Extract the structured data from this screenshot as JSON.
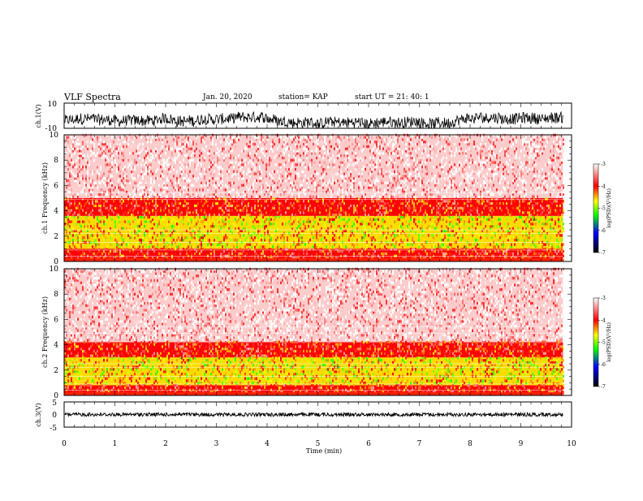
{
  "header": {
    "title": "VLF Spectra",
    "date": "Jan. 20, 2020",
    "station": "station= KAP",
    "start_ut": "start  UT =   21: 40: 1"
  },
  "colorbar": {
    "ticks": [
      "-3",
      "-4",
      "-5",
      "-6",
      "-7"
    ],
    "label": "log(PSD)(V²/Hz)",
    "colors": [
      "#ffffff",
      "#ff0000",
      "#ffff00",
      "#00ff00",
      "#0000ff",
      "#000000"
    ]
  },
  "chart_data": [
    {
      "type": "line",
      "name": "ch1-waveform",
      "ylabel": "ch.1(V)",
      "ylim": [
        -10,
        10
      ],
      "yticks": [
        "10",
        "-10"
      ],
      "xlim": [
        0,
        10
      ],
      "x_data_end": 9.83,
      "description_level": "noisy waveform fluctuating mostly between -10 and 0 V"
    },
    {
      "type": "heatmap",
      "name": "ch1-spectrogram",
      "ylabel": "ch.1\nFrequency (kHz)",
      "ylim": [
        0,
        10
      ],
      "yticks": [
        "0",
        "2",
        "4",
        "6",
        "8",
        "10"
      ],
      "xlim": [
        0,
        10
      ],
      "x_data_end": 9.83,
      "bands": [
        {
          "freq_kHz": [
            0,
            1
          ],
          "log_psd": -4
        },
        {
          "freq_kHz": [
            1,
            3.6
          ],
          "log_psd": -4.6
        },
        {
          "freq_kHz": [
            3.6,
            5
          ],
          "log_psd": -4
        },
        {
          "freq_kHz": [
            5,
            10
          ],
          "log_psd": -3.2
        }
      ]
    },
    {
      "type": "heatmap",
      "name": "ch2-spectrogram",
      "ylabel": "ch.2\nFrequency (kHz)",
      "ylim": [
        0,
        10
      ],
      "yticks": [
        "0",
        "2",
        "4",
        "6",
        "8",
        "10"
      ],
      "xlim": [
        0,
        10
      ],
      "x_data_end": 9.83,
      "bands": [
        {
          "freq_kHz": [
            0,
            0.8
          ],
          "log_psd": -4
        },
        {
          "freq_kHz": [
            0.8,
            3
          ],
          "log_psd": -4.6
        },
        {
          "freq_kHz": [
            3,
            4.2
          ],
          "log_psd": -4
        },
        {
          "freq_kHz": [
            4.2,
            10
          ],
          "log_psd": -3.2
        }
      ]
    },
    {
      "type": "line",
      "name": "ch3-waveform",
      "ylabel": "ch.3(V)",
      "xlabel": "Time (min)",
      "ylim": [
        -5,
        5
      ],
      "yticks": [
        "5",
        "0",
        "-5"
      ],
      "xlim": [
        0,
        10
      ],
      "xticks": [
        "0",
        "1",
        "2",
        "3",
        "4",
        "5",
        "6",
        "7",
        "8",
        "9",
        "10"
      ],
      "x_data_end": 9.83,
      "level_V": 0
    }
  ]
}
